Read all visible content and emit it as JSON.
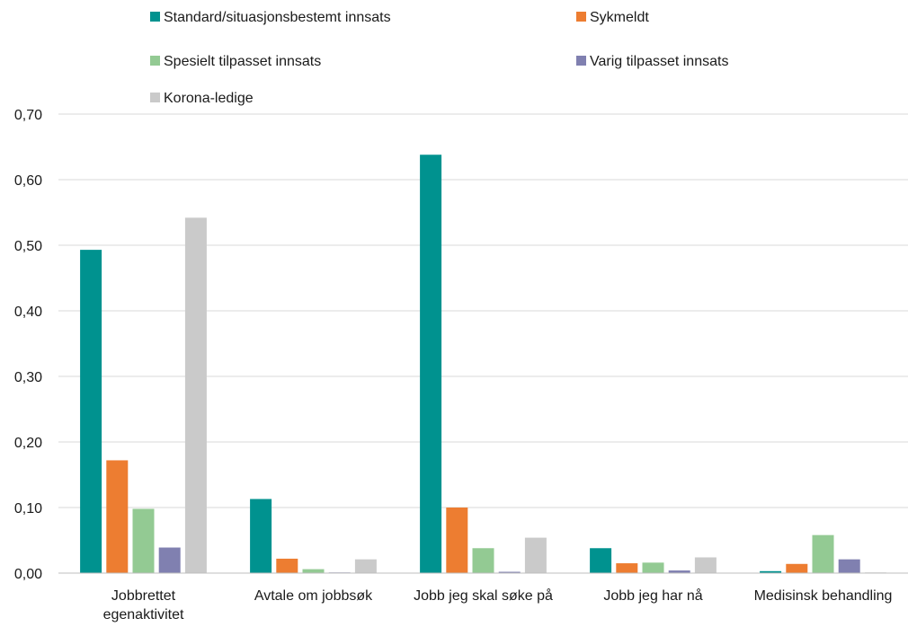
{
  "chart_data": {
    "type": "bar",
    "categories": [
      [
        "Jobbrettet",
        "egenaktivitet"
      ],
      [
        "Avtale om jobbsøk"
      ],
      [
        "Jobb jeg skal søke på"
      ],
      [
        "Jobb jeg har nå"
      ],
      [
        "Medisinsk behandling"
      ]
    ],
    "series": [
      {
        "name": "Standard/situasjonsbestemt innsats",
        "color": "#00928F",
        "values": [
          0.493,
          0.113,
          0.638,
          0.038,
          0.003
        ]
      },
      {
        "name": "Sykmeldt",
        "color": "#ED7D31",
        "values": [
          0.172,
          0.022,
          0.1,
          0.015,
          0.014
        ]
      },
      {
        "name": "Spesielt tilpasset innsats",
        "color": "#93CA93",
        "values": [
          0.098,
          0.006,
          0.038,
          0.016,
          0.058
        ]
      },
      {
        "name": "Varig tilpasset innsats",
        "color": "#8080B0",
        "values": [
          0.039,
          0.001,
          0.002,
          0.004,
          0.021
        ]
      },
      {
        "name": "Korona-ledige",
        "color": "#CACACA",
        "values": [
          0.542,
          0.021,
          0.054,
          0.024,
          0.001
        ]
      }
    ],
    "ylim": [
      0,
      0.7
    ],
    "yticks": [
      "0,00",
      "0,10",
      "0,20",
      "0,30",
      "0,40",
      "0,50",
      "0,60",
      "0,70"
    ],
    "grid": true,
    "legend_position": "top"
  }
}
